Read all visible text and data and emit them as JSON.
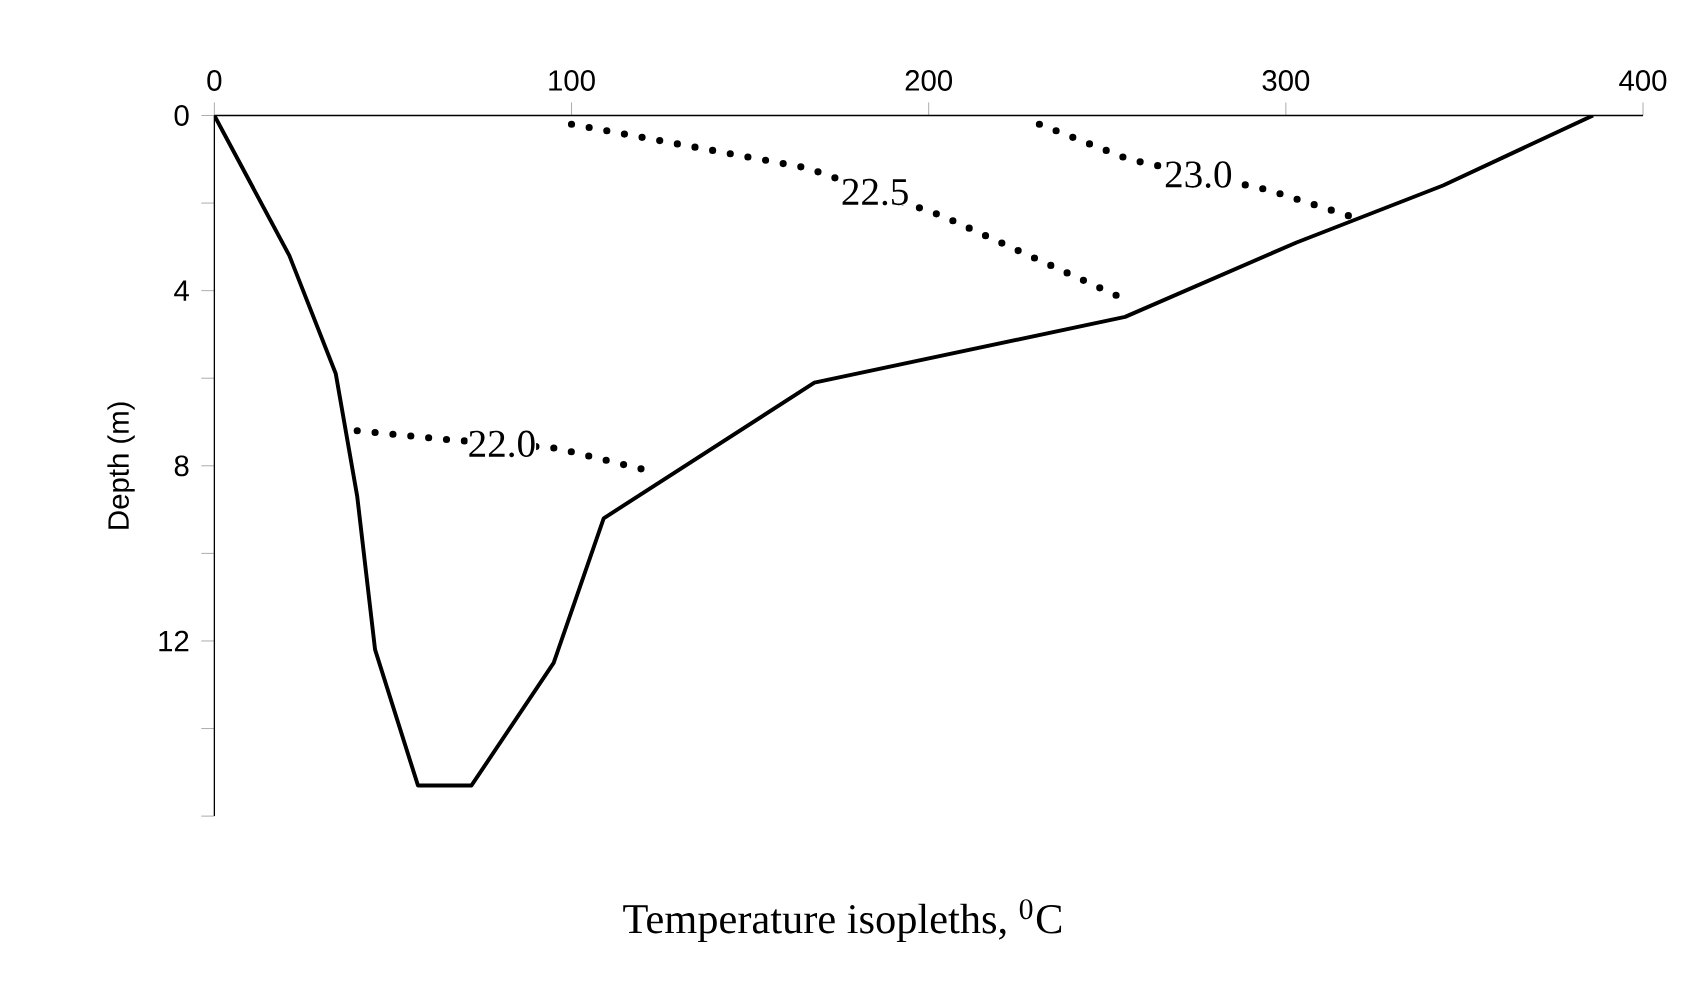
{
  "chart_data": {
    "type": "line",
    "title": "Temperature isopleths, $^{0}$C",
    "ylabel": "Depth (m)",
    "xlim": [
      0,
      400
    ],
    "ylim": [
      16,
      0
    ],
    "xticks": [
      0,
      100,
      200,
      300,
      400
    ],
    "yticks": [
      0,
      {
        "value": 2,
        "label": null
      },
      4,
      {
        "value": 6,
        "label": null
      },
      8,
      {
        "value": 10,
        "label": null
      },
      12,
      {
        "value": 14,
        "label": null
      },
      {
        "value": 16,
        "label": null
      }
    ],
    "marker": "none",
    "series": [
      {
        "color": "#000000",
        "line_style": "solid",
        "x": [
          0,
          21,
          34,
          40,
          45,
          57,
          72,
          95,
          109,
          168,
          255,
          303,
          344,
          386
        ],
        "values": [
          0,
          3.2,
          5.9,
          8.7,
          12.2,
          15.3,
          15.3,
          12.5,
          9.2,
          6.1,
          4.6,
          2.9,
          1.6,
          0
        ]
      },
      {
        "name": "22.0",
        "color": "#000000",
        "line_style": "dotted",
        "x": [
          40,
          65,
          96,
          121
        ],
        "values": [
          7.2,
          7.4,
          7.6,
          8.1
        ]
      },
      {
        "name": "22.5",
        "color": "#000000",
        "line_style": "dotted",
        "x": [
          100,
          166,
          204,
          255
        ],
        "values": [
          0.2,
          1.2,
          2.3,
          4.2
        ]
      },
      {
        "name": "23.0",
        "color": "#000000",
        "line_style": "dotted",
        "x": [
          231,
          256,
          295,
          318
        ],
        "values": [
          0.2,
          1.0,
          1.7,
          2.3
        ]
      }
    ]
  }
}
